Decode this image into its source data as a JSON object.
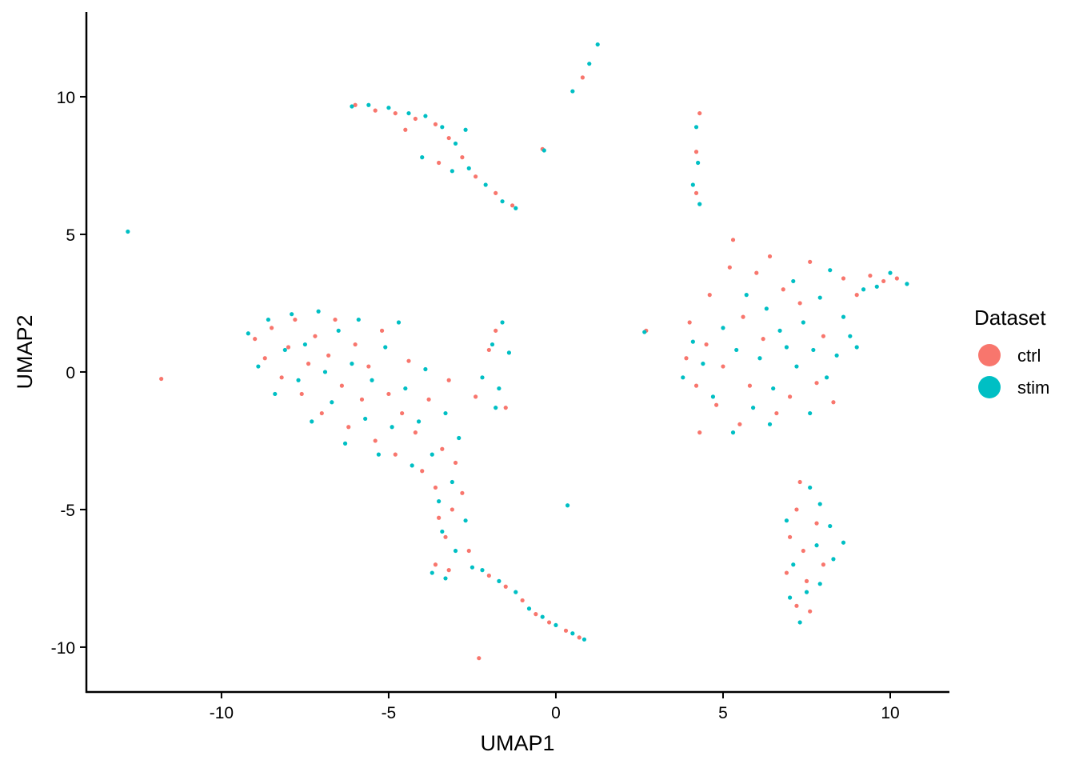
{
  "chart_data": {
    "type": "scatter",
    "x_label": "UMAP1",
    "y_label": "UMAP2",
    "legend_title": "Dataset",
    "legend": "right",
    "xlim": [
      -14.04,
      11.77
    ],
    "ylim": [
      -11.63,
      13.08
    ],
    "xticks": [
      -10,
      -5,
      0,
      5,
      10
    ],
    "yticks": [
      -10,
      -5,
      0,
      5,
      10
    ],
    "series": [
      {
        "name": "ctrl",
        "color": "#F8766D",
        "x": [
          -9,
          -8.7,
          -8.5,
          -8.2,
          -8,
          -7.8,
          -7.6,
          -7.4,
          -7.2,
          -7,
          -6.8,
          -6.6,
          -6.4,
          -6.2,
          -6,
          -5.8,
          -5.6,
          -5.4,
          -5.2,
          -5,
          -4.8,
          -4.6,
          -4.4,
          -4.2,
          -4,
          -3.8,
          -3.6,
          -3.4,
          -3.2,
          -3,
          -3.5,
          -3.3,
          -3.1,
          -3.6,
          -3.2,
          -2.8,
          -2.6,
          -2,
          -1.8,
          -2.4,
          -1.5,
          -2,
          -1.5,
          -1,
          -0.6,
          -0.2,
          0.3,
          0.7,
          -6,
          -5.4,
          -4.8,
          -4.2,
          -3.6,
          -3.2,
          -2.8,
          -3.5,
          -2.4,
          -1.8,
          -1.3,
          -4.5,
          4.2,
          4.2,
          4.3,
          0.8,
          -0.4,
          -11.8,
          2.7,
          -2.3,
          3.9,
          4,
          4.2,
          4.3,
          4.5,
          4.6,
          4.8,
          5,
          5.2,
          5.3,
          5.5,
          5.6,
          5.8,
          6,
          6.2,
          6.4,
          6.6,
          6.8,
          7,
          7.3,
          7.6,
          7.8,
          8,
          8.3,
          8.6,
          9,
          9.4,
          9.8,
          10.2,
          7.3,
          7.2,
          7,
          7.4,
          6.9,
          7.5,
          7.2,
          7.6,
          7.8,
          8
        ],
        "values": [
          1.2,
          0.5,
          1.6,
          -0.2,
          0.9,
          1.9,
          -0.8,
          0.3,
          1.3,
          -1.5,
          0.6,
          1.9,
          -0.5,
          -2,
          1,
          -1,
          0.2,
          -2.5,
          1.5,
          -0.8,
          -3,
          -1.5,
          0.4,
          -2.2,
          -3.6,
          -1,
          -4.2,
          -2.8,
          -0.3,
          -3.3,
          -5.3,
          -6,
          -5,
          -7,
          -7.2,
          -4.4,
          -6.5,
          0.8,
          1.5,
          -0.9,
          -1.3,
          -7.4,
          -7.8,
          -8.3,
          -8.8,
          -9.1,
          -9.4,
          -9.65,
          9.7,
          9.5,
          9.4,
          9.2,
          9,
          8.5,
          7.8,
          7.6,
          7.1,
          6.5,
          6.05,
          8.8,
          6.5,
          8,
          9.4,
          10.7,
          8.1,
          -0.25,
          1.5,
          -10.4,
          0.5,
          1.8,
          -0.5,
          -2.2,
          1,
          2.8,
          -1.2,
          0.2,
          3.8,
          4.8,
          -1.9,
          2,
          -0.5,
          3.6,
          1.2,
          4.2,
          -1.5,
          3,
          -0.9,
          2.5,
          4,
          -0.4,
          1.3,
          -1.1,
          3.4,
          2.8,
          3.5,
          3.3,
          3.4,
          -4,
          -5,
          -6,
          -6.5,
          -7.3,
          -7.6,
          -8.5,
          -8.7,
          -5.5,
          -7
        ]
      },
      {
        "name": "stim",
        "color": "#00BFC4",
        "x": [
          -9.2,
          -8.9,
          -8.6,
          -8.4,
          -8.1,
          -7.9,
          -7.7,
          -7.5,
          -7.3,
          -7.1,
          -6.9,
          -6.7,
          -6.5,
          -6.3,
          -6.1,
          -5.9,
          -5.7,
          -5.5,
          -5.3,
          -5.1,
          -4.9,
          -4.7,
          -4.5,
          -4.3,
          -4.1,
          -3.9,
          -3.7,
          -3.5,
          -3.3,
          -3.1,
          -2.9,
          -3.4,
          -3,
          -3.7,
          -3.3,
          -2.7,
          -2.5,
          -2.2,
          -1.9,
          -1.6,
          -1.4,
          -1.7,
          -1.8,
          -2.2,
          -1.7,
          -1.2,
          -0.8,
          -0.4,
          0,
          0.5,
          0.85,
          -6.1,
          -5.6,
          -5,
          -4.4,
          -3.9,
          -3.4,
          -3,
          -2.7,
          -3.1,
          -2.6,
          -2.1,
          -1.6,
          -1.2,
          -4,
          4.1,
          4.25,
          4.2,
          4.3,
          0.5,
          1,
          1.25,
          -0.35,
          -12.8,
          2.65,
          0.35,
          3.8,
          4.1,
          4.4,
          4.7,
          5,
          5.4,
          5.7,
          5.9,
          6.1,
          6.3,
          6.5,
          6.7,
          6.9,
          7.1,
          7.2,
          7.4,
          7.6,
          7.7,
          7.9,
          8.1,
          8.2,
          8.4,
          8.6,
          8.8,
          9,
          9.2,
          9.6,
          10,
          10.5,
          5.3,
          6.4,
          7.6,
          7.9,
          8.2,
          8.6,
          8.3,
          7.8,
          7.1,
          7.5,
          7,
          7.3,
          7.9,
          6.9
        ],
        "values": [
          1.4,
          0.2,
          1.9,
          -0.8,
          0.8,
          2.1,
          -0.3,
          1,
          -1.8,
          2.2,
          0,
          -1.1,
          1.5,
          -2.6,
          0.3,
          1.9,
          -1.7,
          -0.3,
          -3,
          0.9,
          -2,
          1.8,
          -0.6,
          -3.4,
          -1.8,
          0.1,
          -3,
          -4.7,
          -1.5,
          -4,
          -2.4,
          -5.8,
          -6.5,
          -7.3,
          -7.5,
          -5.4,
          -7.1,
          -0.2,
          1,
          1.8,
          0.7,
          -0.6,
          -1.3,
          -7.2,
          -7.6,
          -8,
          -8.6,
          -8.9,
          -9.2,
          -9.5,
          -9.72,
          9.65,
          9.7,
          9.6,
          9.4,
          9.3,
          8.9,
          8.3,
          8.8,
          7.3,
          7.4,
          6.8,
          6.2,
          5.95,
          7.8,
          6.8,
          7.6,
          8.9,
          6.1,
          10.2,
          11.2,
          11.9,
          8.05,
          5.1,
          1.45,
          -4.85,
          -0.2,
          1.1,
          0.3,
          -0.9,
          1.6,
          0.8,
          2.8,
          -1.3,
          0.5,
          2.3,
          -0.6,
          1.5,
          0.9,
          3.3,
          0.2,
          1.8,
          -1.5,
          0.8,
          2.7,
          -0.2,
          3.7,
          0.6,
          2,
          1.3,
          0.9,
          3,
          3.1,
          3.6,
          3.2,
          -2.2,
          -1.9,
          -4.2,
          -4.8,
          -5.6,
          -6.2,
          -6.8,
          -6.3,
          -7,
          -8,
          -8.2,
          -9.1,
          -7.7,
          -5.4
        ]
      }
    ]
  }
}
